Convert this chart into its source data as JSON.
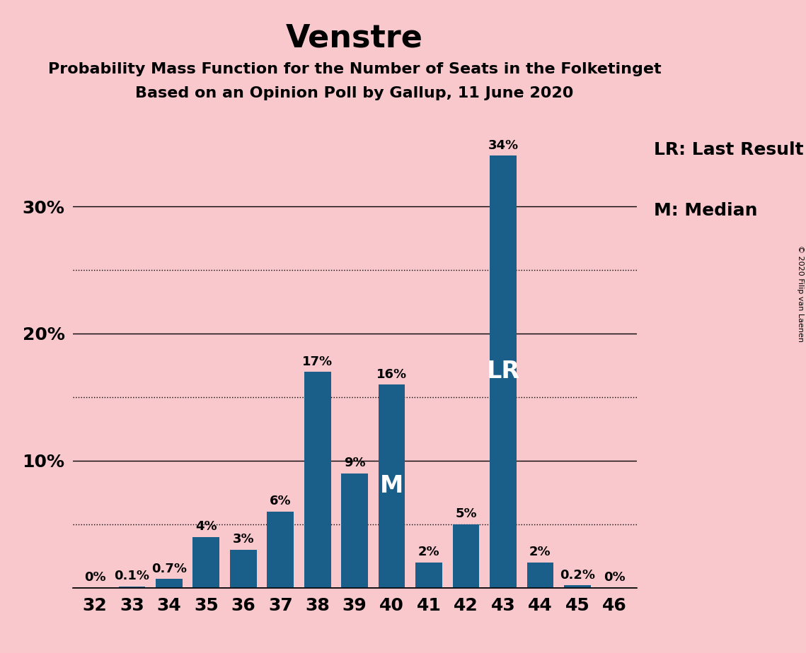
{
  "title": "Venstre",
  "subtitle1": "Probability Mass Function for the Number of Seats in the Folketinget",
  "subtitle2": "Based on an Opinion Poll by Gallup, 11 June 2020",
  "copyright": "© 2020 Filip van Laenen",
  "categories": [
    32,
    33,
    34,
    35,
    36,
    37,
    38,
    39,
    40,
    41,
    42,
    43,
    44,
    45,
    46
  ],
  "values": [
    0.0,
    0.1,
    0.7,
    4.0,
    3.0,
    6.0,
    17.0,
    9.0,
    16.0,
    2.0,
    5.0,
    34.0,
    2.0,
    0.2,
    0.0
  ],
  "labels": [
    "0%",
    "0.1%",
    "0.7%",
    "4%",
    "3%",
    "6%",
    "17%",
    "9%",
    "16%",
    "2%",
    "5%",
    "34%",
    "2%",
    "0.2%",
    "0%"
  ],
  "bar_color": "#1a5f8a",
  "background_color": "#f9c8cc",
  "bar_width": 0.72,
  "ylim": [
    0,
    37
  ],
  "solid_yticks": [
    0,
    10,
    20,
    30
  ],
  "dotted_yticks": [
    5,
    15,
    25
  ],
  "ytick_display": [
    10,
    20,
    30
  ],
  "ytick_labels": [
    "10%",
    "20%",
    "30%"
  ],
  "median_bar": 40,
  "lr_bar": 43,
  "legend_lr": "LR: Last Result",
  "legend_m": "M: Median",
  "title_fontsize": 32,
  "subtitle_fontsize": 16,
  "label_fontsize": 13,
  "tick_fontsize": 18,
  "legend_fontsize": 18,
  "annotation_fontsize": 24,
  "copyright_fontsize": 8
}
